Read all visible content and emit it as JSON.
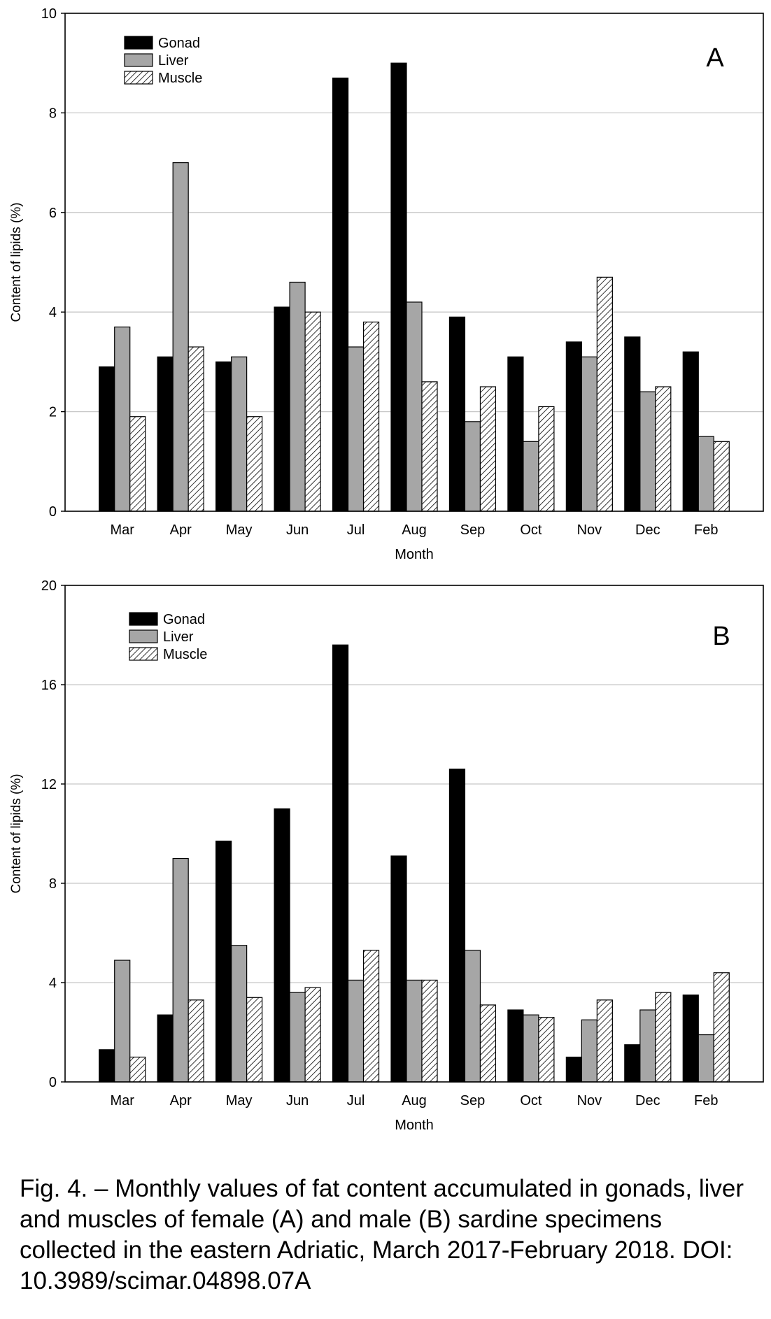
{
  "chart_data": [
    {
      "type": "bar",
      "panel_label": "A",
      "xlabel": "Month",
      "ylabel": "Content of lipids (%)",
      "ylim": [
        0,
        10
      ],
      "yticks": [
        0,
        2,
        4,
        6,
        8,
        10
      ],
      "grid": true,
      "legend_placement": "top-left",
      "categories": [
        "Mar",
        "Apr",
        "May",
        "Jun",
        "Jul",
        "Aug",
        "Sep",
        "Oct",
        "Nov",
        "Dec",
        "Feb"
      ],
      "series": [
        {
          "name": "Gonad",
          "color": "#000000",
          "pattern": "solid",
          "values": [
            2.9,
            3.1,
            3.0,
            4.1,
            8.7,
            9.0,
            3.9,
            3.1,
            3.4,
            3.5,
            3.2
          ]
        },
        {
          "name": "Liver",
          "color": "#a6a6a6",
          "pattern": "solid",
          "values": [
            3.7,
            7.0,
            3.1,
            4.6,
            3.3,
            4.2,
            1.8,
            1.4,
            3.1,
            2.4,
            1.5
          ]
        },
        {
          "name": "Muscle",
          "color": "#ffffff",
          "pattern": "hatched",
          "values": [
            1.9,
            3.3,
            1.9,
            4.0,
            3.8,
            2.6,
            2.5,
            2.1,
            4.7,
            2.5,
            1.4
          ]
        }
      ]
    },
    {
      "type": "bar",
      "panel_label": "B",
      "xlabel": "Month",
      "ylabel": "Content of lipids (%)",
      "ylim": [
        0,
        20
      ],
      "yticks": [
        0,
        4,
        8,
        12,
        16,
        20
      ],
      "grid": true,
      "legend_placement": "top-left",
      "categories": [
        "Mar",
        "Apr",
        "May",
        "Jun",
        "Jul",
        "Aug",
        "Sep",
        "Oct",
        "Nov",
        "Dec",
        "Feb"
      ],
      "series": [
        {
          "name": "Gonad",
          "color": "#000000",
          "pattern": "solid",
          "values": [
            1.3,
            2.7,
            9.7,
            11.0,
            17.6,
            9.1,
            12.6,
            2.9,
            1.0,
            1.5,
            3.5
          ]
        },
        {
          "name": "Liver",
          "color": "#a6a6a6",
          "pattern": "solid",
          "values": [
            4.9,
            9.0,
            5.5,
            3.6,
            4.1,
            4.1,
            5.3,
            2.7,
            2.5,
            2.9,
            1.9
          ]
        },
        {
          "name": "Muscle",
          "color": "#ffffff",
          "pattern": "hatched",
          "values": [
            1.0,
            3.3,
            3.4,
            3.8,
            5.3,
            4.1,
            3.1,
            2.6,
            3.3,
            3.6,
            4.4
          ]
        }
      ]
    }
  ],
  "caption": "Fig. 4. – Monthly values of fat content accumulated in gonads, liver and muscles of female (A) and male (B) sardine specimens collected in the eastern Adriatic, March 2017-February 2018. DOI: 10.3989/scimar.04898.07A"
}
